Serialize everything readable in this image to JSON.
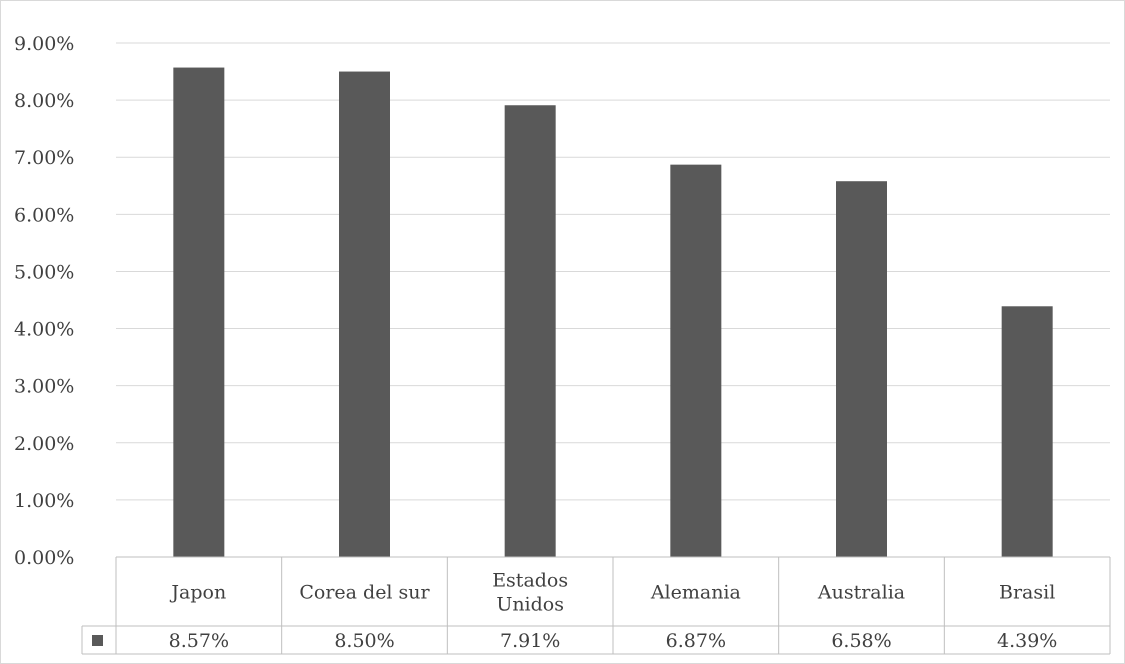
{
  "chart_data": {
    "type": "bar",
    "categories": [
      "Japon",
      "Corea del sur",
      "Estados Unidos",
      "Alemania",
      "Australia",
      "Brasil"
    ],
    "category_lines": [
      [
        "Japon"
      ],
      [
        "Corea del sur"
      ],
      [
        "Estados",
        "Unidos"
      ],
      [
        "Alemania"
      ],
      [
        "Australia"
      ],
      [
        "Brasil"
      ]
    ],
    "series": [
      {
        "values": [
          0.0857,
          0.085,
          0.0791,
          0.0687,
          0.0658,
          0.0439
        ],
        "color": "#595959"
      }
    ],
    "data_labels": [
      "8.57%",
      "8.50%",
      "7.91%",
      "6.87%",
      "6.58%",
      "4.39%"
    ],
    "yticks": [
      "0.00%",
      "1.00%",
      "2.00%",
      "3.00%",
      "4.00%",
      "5.00%",
      "6.00%",
      "7.00%",
      "8.00%",
      "9.00%"
    ],
    "ylim": [
      0,
      0.09
    ],
    "grid": true,
    "data_table": true,
    "legend_key_color": "#595959"
  }
}
